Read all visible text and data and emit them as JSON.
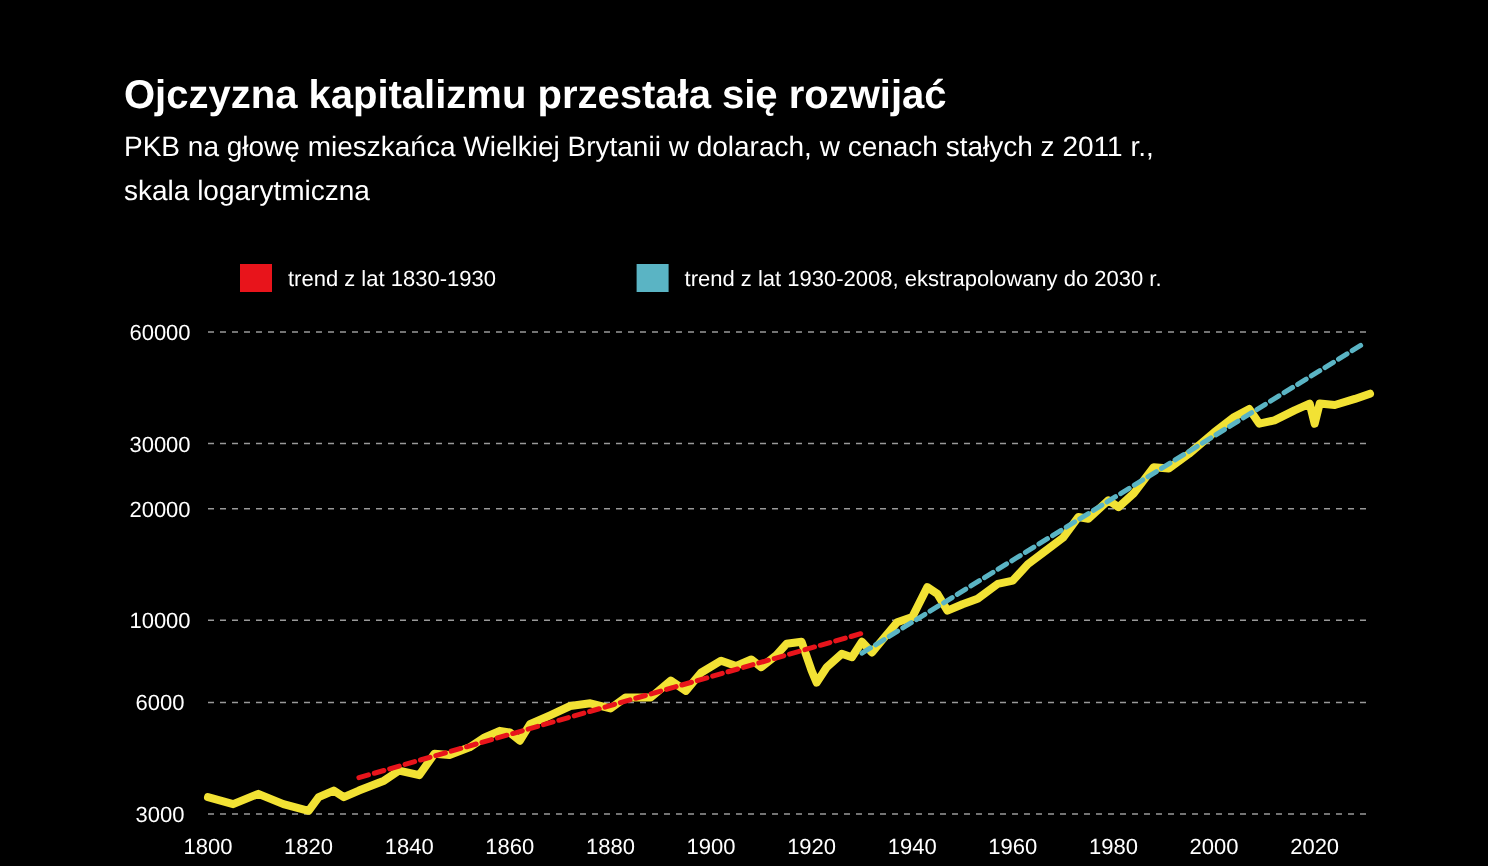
{
  "chart_data": {
    "type": "line",
    "title": "Ojczyzna kapitalizmu przestała się rozwijać",
    "subtitle": "PKB na głowę mieszkańca Wielkiej Brytanii w dolarach, w cenach stałych z 2011 r., skala logarytmiczna",
    "log": "y",
    "grid": "y",
    "legend": "top",
    "xlim": [
      1800,
      2031
    ],
    "xticks": [
      1800,
      1820,
      1840,
      1860,
      1880,
      1900,
      1920,
      1940,
      1960,
      1980,
      2000,
      2020
    ],
    "ylim": [
      3000,
      60000
    ],
    "yticks": [
      3000,
      6000,
      10000,
      20000,
      30000,
      60000
    ],
    "series": [
      {
        "color": "#f2e234",
        "x": [
          1800,
          1805,
          1810,
          1815,
          1820,
          1822,
          1825,
          1827,
          1830,
          1835,
          1838,
          1842,
          1845,
          1848,
          1852,
          1855,
          1858,
          1860,
          1862,
          1864,
          1868,
          1872,
          1876,
          1880,
          1883,
          1888,
          1892,
          1895,
          1898,
          1902,
          1905,
          1908,
          1910,
          1913,
          1915,
          1918,
          1920,
          1921,
          1923,
          1926,
          1928,
          1930,
          1932,
          1934,
          1937,
          1940,
          1943,
          1945,
          1947,
          1950,
          1953,
          1957,
          1960,
          1963,
          1966,
          1970,
          1973,
          1975,
          1979,
          1981,
          1984,
          1988,
          1991,
          1995,
          2000,
          2004,
          2007,
          2009,
          2012,
          2016,
          2019,
          2020,
          2021,
          2024,
          2028,
          2031
        ],
        "values": [
          3330,
          3190,
          3400,
          3190,
          3060,
          3330,
          3470,
          3330,
          3470,
          3690,
          3930,
          3820,
          4360,
          4330,
          4540,
          4830,
          5030,
          4980,
          4730,
          5240,
          5540,
          5870,
          5970,
          5780,
          6190,
          6190,
          6870,
          6450,
          7220,
          7780,
          7530,
          7840,
          7470,
          8050,
          8640,
          8750,
          7310,
          6790,
          7470,
          8120,
          7950,
          8750,
          8190,
          8830,
          9880,
          10200,
          12290,
          11780,
          10620,
          11050,
          11430,
          12540,
          12800,
          14180,
          15210,
          16720,
          19000,
          18800,
          21080,
          20200,
          21980,
          25900,
          25700,
          28130,
          32130,
          35380,
          37180,
          33940,
          34640,
          36860,
          38450,
          33940,
          38450,
          38110,
          39580,
          40900
        ]
      },
      {
        "name": "trend z lat 1830-1930",
        "color": "#e8141b",
        "line_style": "dashed",
        "x": [
          1830,
          1930
        ],
        "values": [
          3760,
          9220
        ]
      },
      {
        "name": "trend z lat 1930-2008, ekstrapolowany do 2030 r.",
        "color": "#5ab4c4",
        "line_style": "dashed",
        "x": [
          1930,
          2030
        ],
        "values": [
          8150,
          56100
        ]
      }
    ]
  }
}
